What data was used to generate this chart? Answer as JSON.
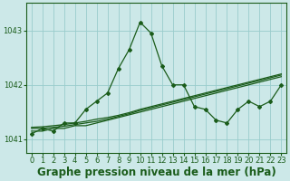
{
  "title": "Graphe pression niveau de la mer (hPa)",
  "background_color": "#cce8e8",
  "plot_bg_color": "#cce8e8",
  "line_color": "#1a5c1a",
  "grid_color": "#99cccc",
  "xlabel_color": "#1a5c1a",
  "hours": [
    0,
    1,
    2,
    3,
    4,
    5,
    6,
    7,
    8,
    9,
    10,
    11,
    12,
    13,
    14,
    15,
    16,
    17,
    18,
    19,
    20,
    21,
    22,
    23
  ],
  "s_main": [
    1041.1,
    1041.2,
    1041.15,
    1041.3,
    1041.3,
    1041.55,
    1041.7,
    1041.85,
    1042.3,
    1042.65,
    1043.15,
    1042.95,
    1042.35,
    1042.0,
    1042.0,
    1041.6,
    1041.55,
    1041.35,
    1041.3,
    1041.55,
    1041.7,
    1041.6,
    1041.7,
    1042.0
  ],
  "s_flat1": [
    1041.15,
    1041.15,
    1041.2,
    1041.2,
    1041.25,
    1041.25,
    1041.3,
    1041.35,
    1041.4,
    1041.45,
    1041.5,
    1041.55,
    1041.6,
    1041.65,
    1041.7,
    1041.75,
    1041.8,
    1041.85,
    1041.9,
    1041.95,
    1042.0,
    1042.05,
    1042.1,
    1042.15
  ],
  "s_flat2": [
    1041.2,
    1041.2,
    1041.22,
    1041.24,
    1041.27,
    1041.3,
    1041.33,
    1041.37,
    1041.42,
    1041.47,
    1041.53,
    1041.58,
    1041.63,
    1041.68,
    1041.73,
    1041.78,
    1041.83,
    1041.88,
    1041.93,
    1041.98,
    1042.03,
    1042.08,
    1042.13,
    1042.18
  ],
  "s_flat3": [
    1041.22,
    1041.23,
    1041.25,
    1041.27,
    1041.3,
    1041.33,
    1041.37,
    1041.4,
    1041.44,
    1041.49,
    1041.55,
    1041.6,
    1041.65,
    1041.7,
    1041.75,
    1041.8,
    1041.85,
    1041.9,
    1041.95,
    1042.0,
    1042.05,
    1042.1,
    1042.15,
    1042.2
  ],
  "ylim_min": 1040.75,
  "ylim_max": 1043.5,
  "yticks": [
    1041,
    1042,
    1043
  ],
  "xticks": [
    0,
    1,
    2,
    3,
    4,
    5,
    6,
    7,
    8,
    9,
    10,
    11,
    12,
    13,
    14,
    15,
    16,
    17,
    18,
    19,
    20,
    21,
    22,
    23
  ],
  "title_fontsize": 8.5,
  "tick_fontsize": 6,
  "marker": "D",
  "marker_size": 2.0,
  "linewidth": 0.9
}
